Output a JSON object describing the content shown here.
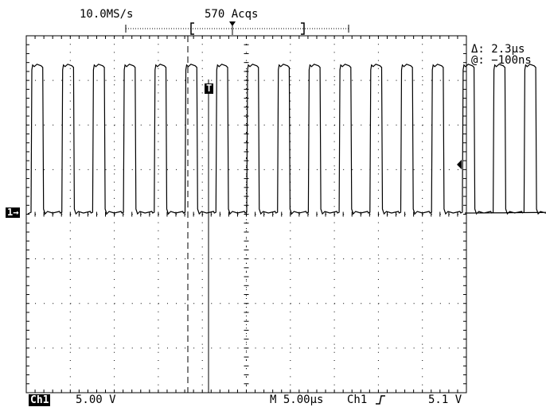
{
  "header": {
    "sample_rate": "10.0MS/s",
    "acquisitions": "570 Acqs"
  },
  "cursor_readout": {
    "delta": "Δ: 2.3µs",
    "at": "@: −100ns"
  },
  "markers": {
    "channel_marker": "1→",
    "trigger_marker": "T"
  },
  "footer": {
    "channel": "Ch1",
    "volts_per_div": "5.00 V",
    "timebase": "M 5.00µs",
    "trigger_source": "Ch1",
    "trigger_slope_icon": "rising-edge-icon",
    "trigger_level": "5.1 V"
  },
  "waveform": {
    "pulse_count": 21,
    "period_us": 3.5,
    "high_level_v": 16.5,
    "low_level_v": 0
  }
}
